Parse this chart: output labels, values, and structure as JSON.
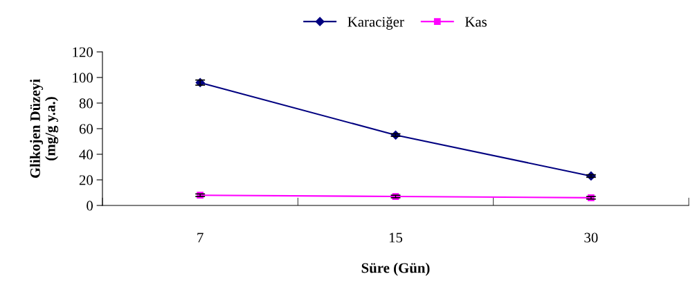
{
  "chart_data": {
    "type": "line",
    "xlabel": "Süre (Gün)",
    "ylabel": "Glikojen Düzeyi\n(mg/g y.a.)",
    "categories": [
      "7",
      "15",
      "30"
    ],
    "series": [
      {
        "name": "Karaciğer",
        "color": "#000080",
        "values": [
          96,
          55,
          23
        ],
        "errors": [
          2,
          1,
          1
        ],
        "marker": "diamond"
      },
      {
        "name": "Kas",
        "color": "#ff00ff",
        "values": [
          8,
          7,
          6
        ],
        "errors": [
          1,
          1,
          1
        ],
        "marker": "square"
      }
    ],
    "ylim": [
      0,
      120
    ],
    "yticks": [
      0,
      20,
      40,
      60,
      80,
      100,
      120
    ],
    "grid": false,
    "legend": "top",
    "line_style": "solid"
  }
}
